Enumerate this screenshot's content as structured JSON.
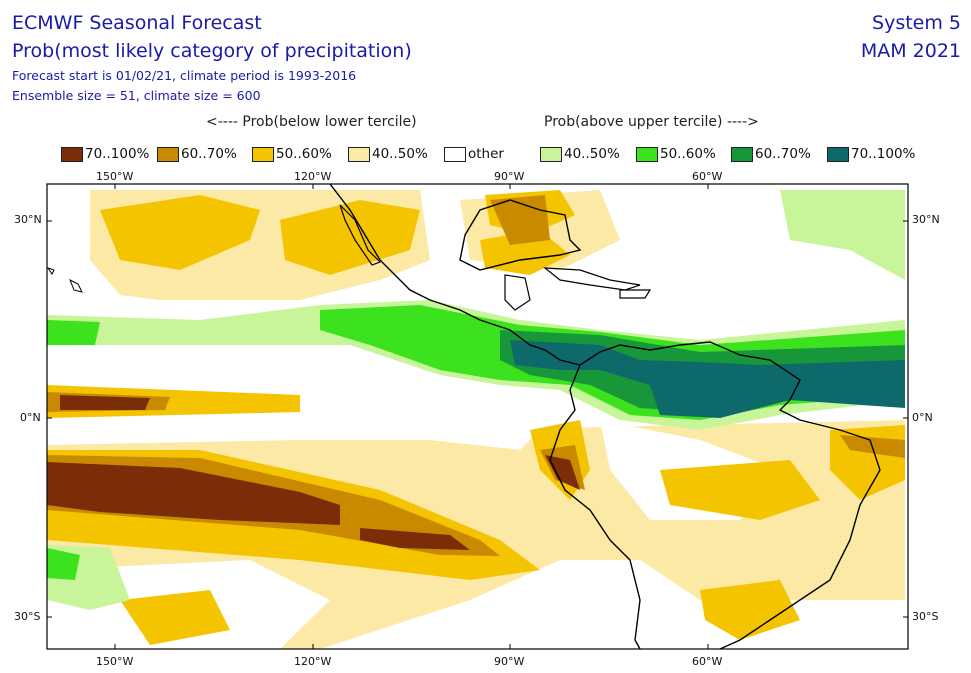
{
  "header": {
    "title": "ECMWF Seasonal Forecast",
    "subtitle": "Prob(most likely category of precipitation)",
    "line1": "Forecast start is 01/02/21, climate period is 1993-2016",
    "line2": "Ensemble size = 51, climate size = 600",
    "system": "System 5",
    "period": "MAM 2021"
  },
  "legend": {
    "below_header": "<---- Prob(below lower tercile)",
    "above_header": "Prob(above upper tercile) ---->",
    "items": [
      {
        "label": "70..100%",
        "color": "#7b2d08"
      },
      {
        "label": "60..70%",
        "color": "#c98a00"
      },
      {
        "label": "50..60%",
        "color": "#f5c400"
      },
      {
        "label": "40..50%",
        "color": "#fde9a6"
      },
      {
        "label": "other",
        "color": "#ffffff"
      },
      {
        "label": "40..50%",
        "color": "#c8f59a"
      },
      {
        "label": "50..60%",
        "color": "#3ce21e"
      },
      {
        "label": "60..70%",
        "color": "#18963a"
      },
      {
        "label": "70..100%",
        "color": "#0e6a6a"
      }
    ]
  },
  "axes": {
    "lon_ticks": [
      "150°W",
      "120°W",
      "90°W",
      "60°W"
    ],
    "lat_ticks": [
      "30°N",
      "0°N",
      "30°S"
    ]
  }
}
